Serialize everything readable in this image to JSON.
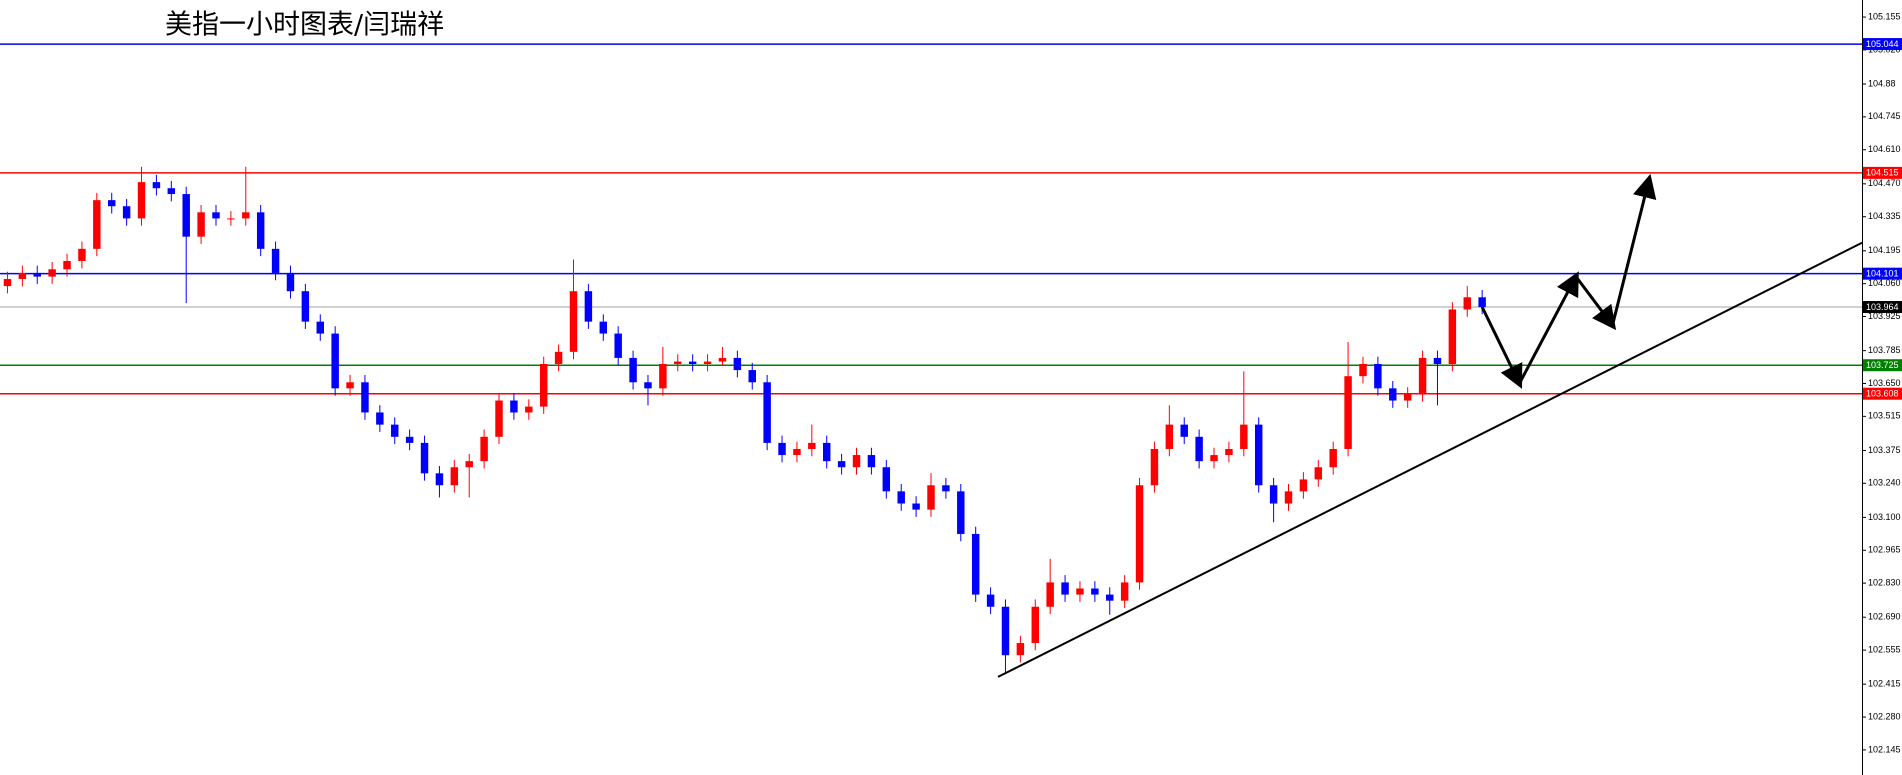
{
  "chart_data": {
    "type": "candlestick",
    "title": "美指一小时图表/闫瑞祥",
    "xlim": [
      0,
      125
    ],
    "ylim": [
      102.042,
      105.225
    ],
    "yticks": [
      105.155,
      {
        "value": 105.02,
        "label": "105.020"
      },
      104.88,
      104.745,
      {
        "value": 104.61,
        "label": "104.610"
      },
      {
        "value": 104.47,
        "label": "104.470"
      },
      104.335,
      104.195,
      {
        "value": 104.06,
        "label": "104.060"
      },
      103.925,
      103.785,
      {
        "value": 103.65,
        "label": "103.650"
      },
      103.515,
      103.375,
      {
        "value": 103.24,
        "label": "103.240"
      },
      {
        "value": 103.1,
        "label": "103.100"
      },
      102.965,
      {
        "value": 102.83,
        "label": "102.830"
      },
      {
        "value": 102.69,
        "label": "102.690"
      },
      102.555,
      102.415,
      {
        "value": 102.28,
        "label": "102.280"
      },
      102.145
    ],
    "up_color": "#ff0000",
    "down_color": "#0000ff",
    "open": [
      104.05,
      104.079,
      104.104,
      104.089,
      104.119,
      104.153,
      104.203,
      104.403,
      104.378,
      104.328,
      104.477,
      104.452,
      104.428,
      104.253,
      104.353,
      104.328,
      104.328,
      104.353,
      104.203,
      104.104,
      104.029,
      103.904,
      103.855,
      103.63,
      103.655,
      103.531,
      103.481,
      103.431,
      103.406,
      103.281,
      103.232,
      103.306,
      103.331,
      103.431,
      103.58,
      103.531,
      103.555,
      103.73,
      103.78,
      104.029,
      103.904,
      103.855,
      103.755,
      103.655,
      103.63,
      103.73,
      103.74,
      103.73,
      103.74,
      103.755,
      103.705,
      103.655,
      103.406,
      103.356,
      103.381,
      103.406,
      103.331,
      103.306,
      103.356,
      103.306,
      103.207,
      103.157,
      103.132,
      103.232,
      103.207,
      103.032,
      102.783,
      102.733,
      102.534,
      102.584,
      102.733,
      102.833,
      102.783,
      102.808,
      102.783,
      102.758,
      102.833,
      103.232,
      103.381,
      103.481,
      103.431,
      103.331,
      103.356,
      103.381,
      103.481,
      103.232,
      103.157,
      103.207,
      103.256,
      103.306,
      103.381,
      103.68,
      103.73,
      103.63,
      103.58,
      103.605,
      103.755,
      103.73,
      103.954,
      104.004
    ],
    "high": [
      104.109,
      104.134,
      104.134,
      104.149,
      104.183,
      104.233,
      104.433,
      104.433,
      104.408,
      104.54,
      104.507,
      104.482,
      104.458,
      104.383,
      104.383,
      104.358,
      104.54,
      104.383,
      104.233,
      104.134,
      104.059,
      103.934,
      103.885,
      103.685,
      103.685,
      103.561,
      103.511,
      103.461,
      103.436,
      103.311,
      103.336,
      103.361,
      103.461,
      103.61,
      103.61,
      103.585,
      103.76,
      103.81,
      104.159,
      104.059,
      103.934,
      103.885,
      103.785,
      103.685,
      103.8,
      103.77,
      103.77,
      103.77,
      103.8,
      103.785,
      103.735,
      103.685,
      103.436,
      103.411,
      103.481,
      103.436,
      103.361,
      103.386,
      103.386,
      103.336,
      103.237,
      103.187,
      103.282,
      103.262,
      103.237,
      103.062,
      102.813,
      102.763,
      102.614,
      102.763,
      102.93,
      102.863,
      102.838,
      102.838,
      102.813,
      102.863,
      103.262,
      103.411,
      103.56,
      103.511,
      103.461,
      103.386,
      103.411,
      103.7,
      103.511,
      103.262,
      103.237,
      103.286,
      103.336,
      103.411,
      103.82,
      103.76,
      103.76,
      103.66,
      103.635,
      103.785,
      103.785,
      103.984,
      104.05,
      104.034
    ],
    "low": [
      104.02,
      104.049,
      104.059,
      104.059,
      104.089,
      104.123,
      104.173,
      104.348,
      104.298,
      104.298,
      104.422,
      104.398,
      103.98,
      104.223,
      104.298,
      104.298,
      104.298,
      104.173,
      104.074,
      103.999,
      103.874,
      103.825,
      103.6,
      103.6,
      103.501,
      103.451,
      103.401,
      103.376,
      103.251,
      103.182,
      103.202,
      103.182,
      103.301,
      103.401,
      103.501,
      103.501,
      103.525,
      103.7,
      103.75,
      103.874,
      103.825,
      103.725,
      103.625,
      103.56,
      103.6,
      103.7,
      103.7,
      103.7,
      103.725,
      103.675,
      103.625,
      103.376,
      103.326,
      103.326,
      103.351,
      103.301,
      103.276,
      103.276,
      103.276,
      103.177,
      103.127,
      103.102,
      103.102,
      103.177,
      103.002,
      102.753,
      102.703,
      102.46,
      102.504,
      102.554,
      102.703,
      102.753,
      102.753,
      102.753,
      102.7,
      102.728,
      102.803,
      103.202,
      103.351,
      103.401,
      103.301,
      103.301,
      103.326,
      103.351,
      103.202,
      103.08,
      103.127,
      103.177,
      103.226,
      103.276,
      103.351,
      103.65,
      103.6,
      103.55,
      103.55,
      103.575,
      103.56,
      103.7,
      103.924,
      103.934
    ],
    "close": [
      104.079,
      104.104,
      104.089,
      104.119,
      104.153,
      104.203,
      104.403,
      104.378,
      104.328,
      104.477,
      104.452,
      104.428,
      104.253,
      104.353,
      104.328,
      104.328,
      104.353,
      104.203,
      104.104,
      104.029,
      103.904,
      103.855,
      103.63,
      103.655,
      103.531,
      103.481,
      103.431,
      103.406,
      103.281,
      103.232,
      103.306,
      103.331,
      103.431,
      103.58,
      103.531,
      103.555,
      103.73,
      103.78,
      104.029,
      103.904,
      103.855,
      103.755,
      103.655,
      103.63,
      103.73,
      103.74,
      103.73,
      103.74,
      103.755,
      103.705,
      103.655,
      103.406,
      103.356,
      103.381,
      103.406,
      103.331,
      103.306,
      103.356,
      103.306,
      103.207,
      103.157,
      103.132,
      103.232,
      103.207,
      103.032,
      102.783,
      102.733,
      102.534,
      102.584,
      102.733,
      102.833,
      102.783,
      102.808,
      102.783,
      102.758,
      102.833,
      103.232,
      103.381,
      103.481,
      103.431,
      103.331,
      103.356,
      103.381,
      103.481,
      103.232,
      103.157,
      103.207,
      103.256,
      103.306,
      103.381,
      103.68,
      103.73,
      103.63,
      103.58,
      103.605,
      103.755,
      103.73,
      103.954,
      104.004,
      103.964
    ],
    "levels": [
      {
        "value": 105.044,
        "color": "#0000ff"
      },
      {
        "value": 104.515,
        "color": "#ff0000"
      },
      {
        "value": 104.101,
        "color": "#0000ff"
      },
      {
        "value": 103.964,
        "color": "#c0c0c0",
        "label_color": "#000000"
      },
      {
        "value": 103.725,
        "color": "#008000"
      },
      {
        "value": 103.608,
        "color": "#ff0000"
      }
    ],
    "trendline": {
      "x": [
        67,
        125
      ],
      "y": [
        102.445,
        104.228
      ],
      "color": "#000000"
    },
    "projection": {
      "x": [
        99.5,
        102.0,
        105.8,
        108.25,
        110.7
      ],
      "y": [
        103.964,
        103.65,
        104.089,
        103.889,
        104.487
      ],
      "color": "#000000"
    }
  }
}
